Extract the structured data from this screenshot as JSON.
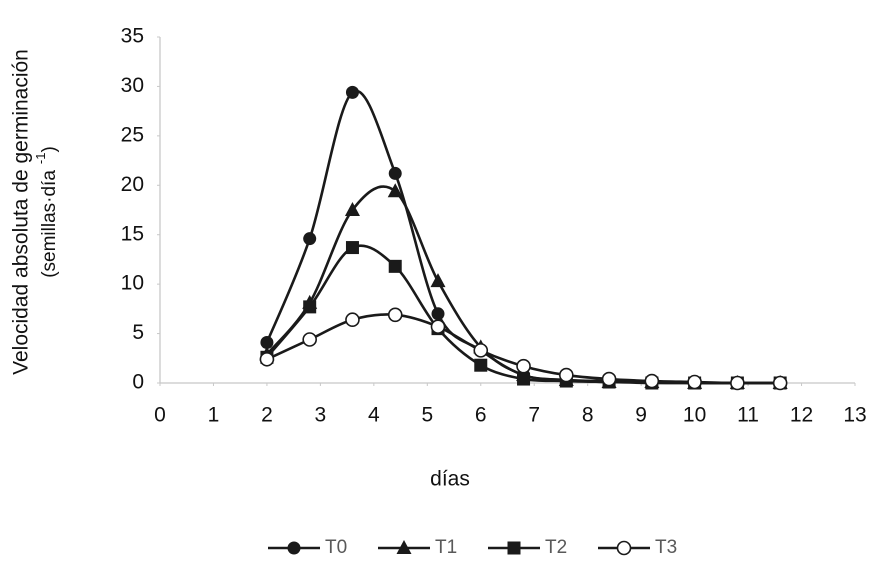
{
  "chart_data": {
    "type": "line",
    "y_label": "Velocidad absoluta de germinación",
    "y_label_unit": "(semillas·día",
    "y_label_unit_exp": "-1",
    "y_label_unit_close": ")",
    "x_label": "días",
    "x": [
      2,
      2.8,
      3.6,
      4.4,
      5.2,
      6,
      6.8,
      7.6,
      8.4,
      9.2,
      10,
      10.8,
      11.6
    ],
    "series": [
      {
        "name": "T0",
        "color": "#1a1a1a",
        "marker": "circle",
        "values": [
          4.1,
          14.6,
          29.4,
          21.2,
          7.0,
          3.3,
          0.8,
          0.3,
          0.2,
          0.1,
          0,
          0,
          0
        ]
      },
      {
        "name": "T1",
        "color": "#1a1a1a",
        "marker": "triangle",
        "values": [
          2.9,
          8.1,
          17.5,
          19.4,
          10.3,
          3.6,
          0.8,
          0.3,
          0.1,
          0.1,
          0,
          0,
          0
        ]
      },
      {
        "name": "T2",
        "color": "#1a1a1a",
        "marker": "square",
        "values": [
          2.6,
          7.7,
          13.7,
          11.8,
          5.5,
          1.8,
          0.4,
          0.2,
          0.1,
          0,
          0,
          0,
          0
        ]
      },
      {
        "name": "T3",
        "color": "#1a1a1a",
        "marker": "open-circle",
        "values": [
          2.4,
          4.4,
          6.4,
          6.9,
          5.7,
          3.3,
          1.7,
          0.8,
          0.4,
          0.2,
          0.1,
          0,
          0
        ]
      }
    ],
    "xlim": [
      0,
      13
    ],
    "xticks": [
      0,
      1,
      2,
      3,
      4,
      5,
      6,
      7,
      8,
      9,
      10,
      11,
      12,
      13
    ],
    "ylim": [
      0,
      35
    ],
    "yticks": [
      0,
      5,
      10,
      15,
      20,
      25,
      30,
      35
    ],
    "grid": false,
    "legend": "bottom"
  }
}
